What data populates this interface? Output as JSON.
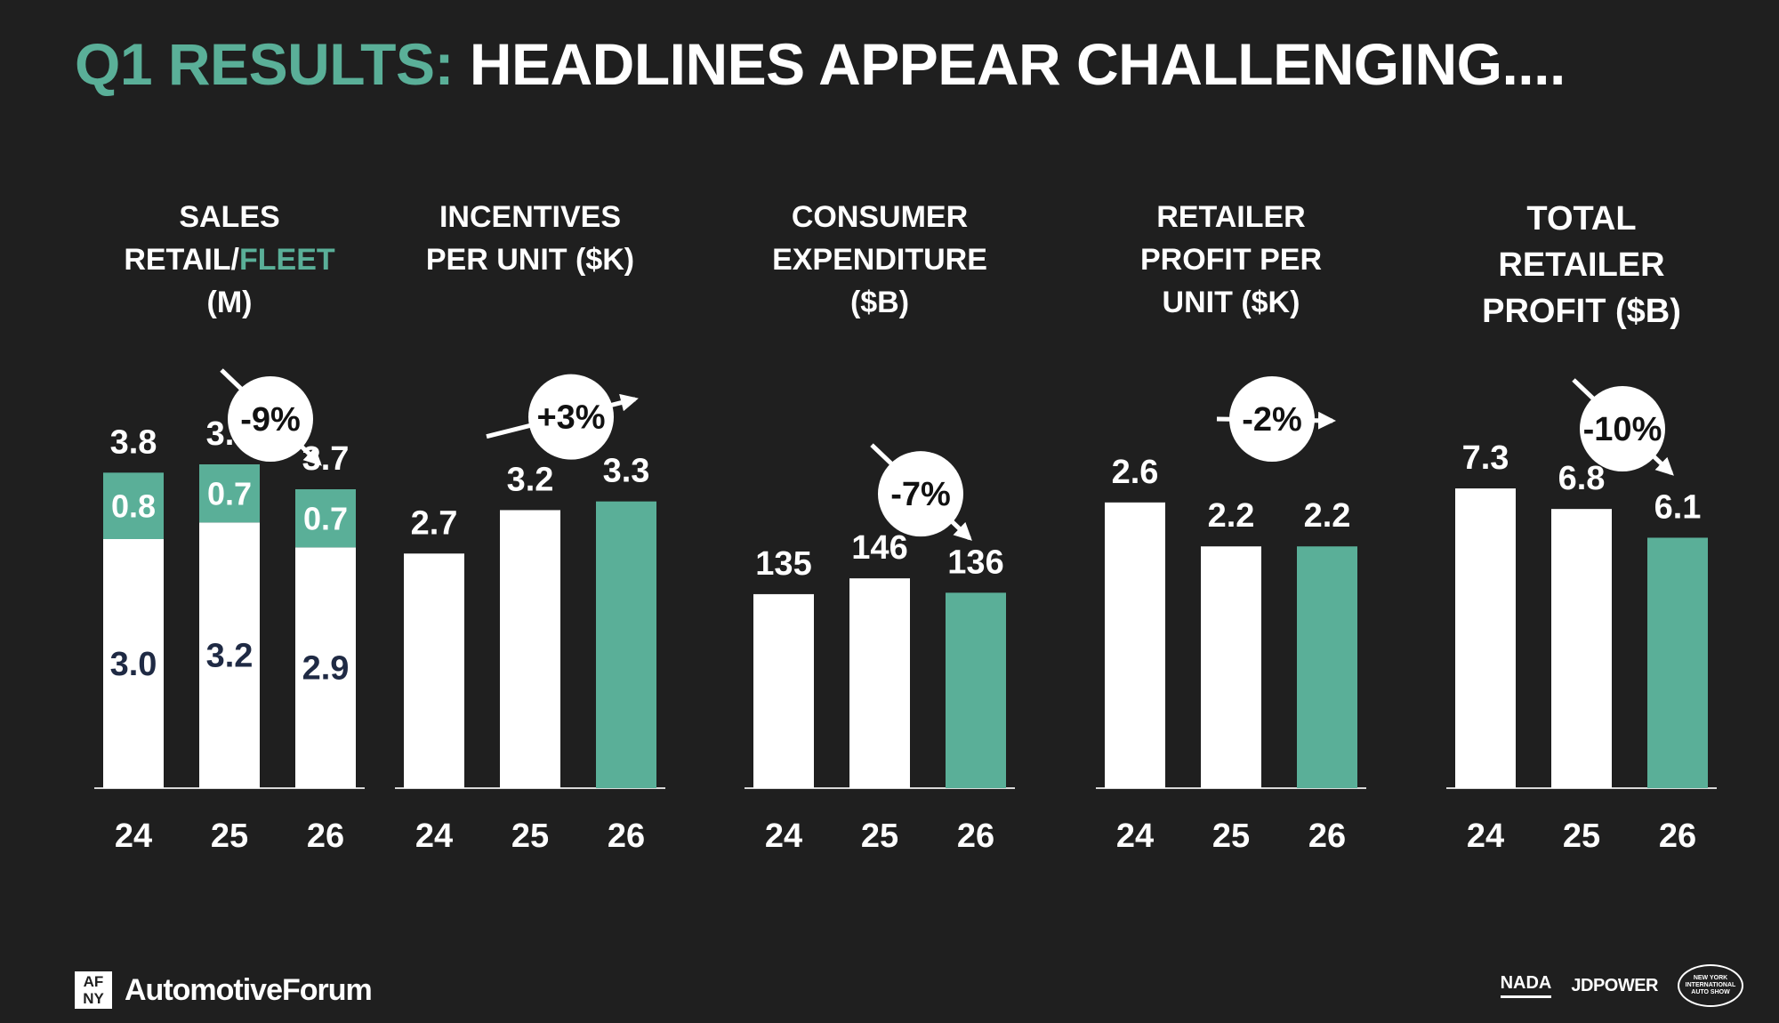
{
  "title": {
    "accent": "Q1 RESULTS:",
    "rest": "HEADLINES APPEAR CHALLENGING...."
  },
  "colors": {
    "background": "#1f1f1f",
    "accent": "#5aaf98",
    "bar": "#ffffff",
    "text_dark": "#1f2a44"
  },
  "chart_data": [
    {
      "type": "bar",
      "stacked": true,
      "title_lines": [
        [
          {
            "text": "SALES"
          }
        ],
        [
          {
            "text": "RETAIL/"
          },
          {
            "text": "FLEET",
            "accent": true
          }
        ],
        [
          {
            "text": "(M)"
          }
        ]
      ],
      "categories": [
        "24",
        "25",
        "26"
      ],
      "series": [
        {
          "name": "RETAIL",
          "values": [
            3.0,
            3.2,
            2.9
          ]
        },
        {
          "name": "FLEET",
          "values": [
            0.8,
            0.7,
            0.7
          ]
        }
      ],
      "totals": [
        "3.8",
        "3.9",
        "3.7"
      ],
      "segment_labels": {
        "retail": [
          "3.0",
          "3.2",
          "2.9"
        ],
        "fleet": [
          "0.8",
          "0.7",
          "0.7"
        ]
      },
      "change": {
        "label": "-9%",
        "direction": "down"
      },
      "ylim": [
        0,
        4.5
      ]
    },
    {
      "type": "bar",
      "title_lines": [
        [
          {
            "text": "INCENTIVES"
          }
        ],
        [
          {
            "text": "PER UNIT ($K)"
          }
        ]
      ],
      "categories": [
        "24",
        "25",
        "26"
      ],
      "values": [
        2.7,
        3.2,
        3.3
      ],
      "value_labels": [
        "2.7",
        "3.2",
        "3.3"
      ],
      "highlight_last": true,
      "change": {
        "label": "+3%",
        "direction": "up"
      },
      "ylim": [
        0,
        4.3
      ]
    },
    {
      "type": "bar",
      "title_lines": [
        [
          {
            "text": "CONSUMER"
          }
        ],
        [
          {
            "text": "EXPENDITURE"
          }
        ],
        [
          {
            "text": "($B)"
          }
        ]
      ],
      "categories": [
        "24",
        "25",
        "26"
      ],
      "values": [
        135,
        146,
        136
      ],
      "value_labels": [
        "135",
        "146",
        "136"
      ],
      "highlight_last": true,
      "change": {
        "label": "-7%",
        "direction": "down"
      },
      "ylim": [
        0,
        260
      ]
    },
    {
      "type": "bar",
      "title_lines": [
        [
          {
            "text": "RETAILER"
          }
        ],
        [
          {
            "text": "PROFIT PER"
          }
        ],
        [
          {
            "text": "UNIT ($K)"
          }
        ]
      ],
      "categories": [
        "24",
        "25",
        "26"
      ],
      "values": [
        2.6,
        2.2,
        2.2
      ],
      "value_labels": [
        "2.6",
        "2.2",
        "2.2"
      ],
      "highlight_last": true,
      "change": {
        "label": "-2%",
        "direction": "flat"
      },
      "ylim": [
        0,
        3.4
      ]
    },
    {
      "type": "bar",
      "title_lines": [
        [
          {
            "text": "TOTAL"
          }
        ],
        [
          {
            "text": "RETAILER"
          }
        ],
        [
          {
            "text": "PROFIT ($B)"
          }
        ]
      ],
      "categories": [
        "24",
        "25",
        "26"
      ],
      "values": [
        7.3,
        6.8,
        6.1
      ],
      "value_labels": [
        "7.3",
        "6.8",
        "6.1"
      ],
      "highlight_last": true,
      "change": {
        "label": "-10%",
        "direction": "down"
      },
      "ylim": [
        0,
        9.1
      ]
    }
  ],
  "footer": {
    "logo_top": "AF",
    "logo_bottom": "NY",
    "brand": "AutomotiveForum",
    "partners": [
      "NADA",
      "JDPOWER"
    ],
    "partner_badge": "NEW YORK INTERNATIONAL AUTO SHOW"
  }
}
